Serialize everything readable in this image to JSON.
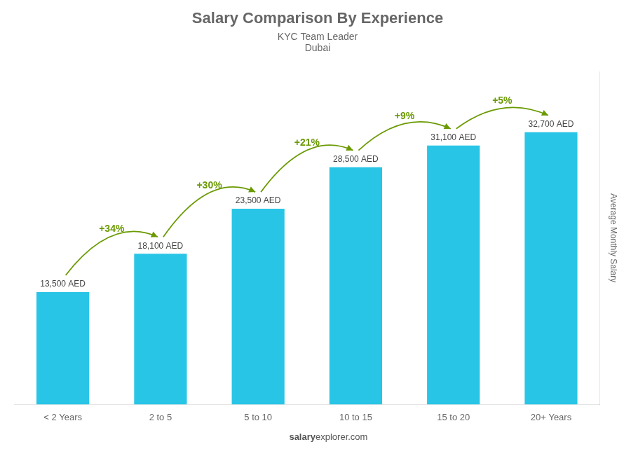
{
  "chart_data": {
    "type": "bar",
    "title": "Salary Comparison By Experience",
    "subtitle": "KYC Team Leader",
    "location": "Dubai",
    "categories": [
      "< 2 Years",
      "2 to 5",
      "5 to 10",
      "10 to 15",
      "15 to 20",
      "20+ Years"
    ],
    "values": [
      13500,
      18100,
      23500,
      28500,
      31100,
      32700
    ],
    "value_labels": [
      "13,500 AED",
      "18,100 AED",
      "23,500 AED",
      "28,500 AED",
      "31,100 AED",
      "32,700 AED"
    ],
    "data_labels": true,
    "annotations": [
      "+34%",
      "+30%",
      "+21%",
      "+9%",
      "+5%"
    ],
    "ylabel": "Average Monthly Salary",
    "footer": [
      "salary",
      "explorer.com"
    ],
    "color": "#29c5e6",
    "ylim": [
      0,
      40000
    ],
    "grid": false,
    "tick_labels": "x"
  }
}
